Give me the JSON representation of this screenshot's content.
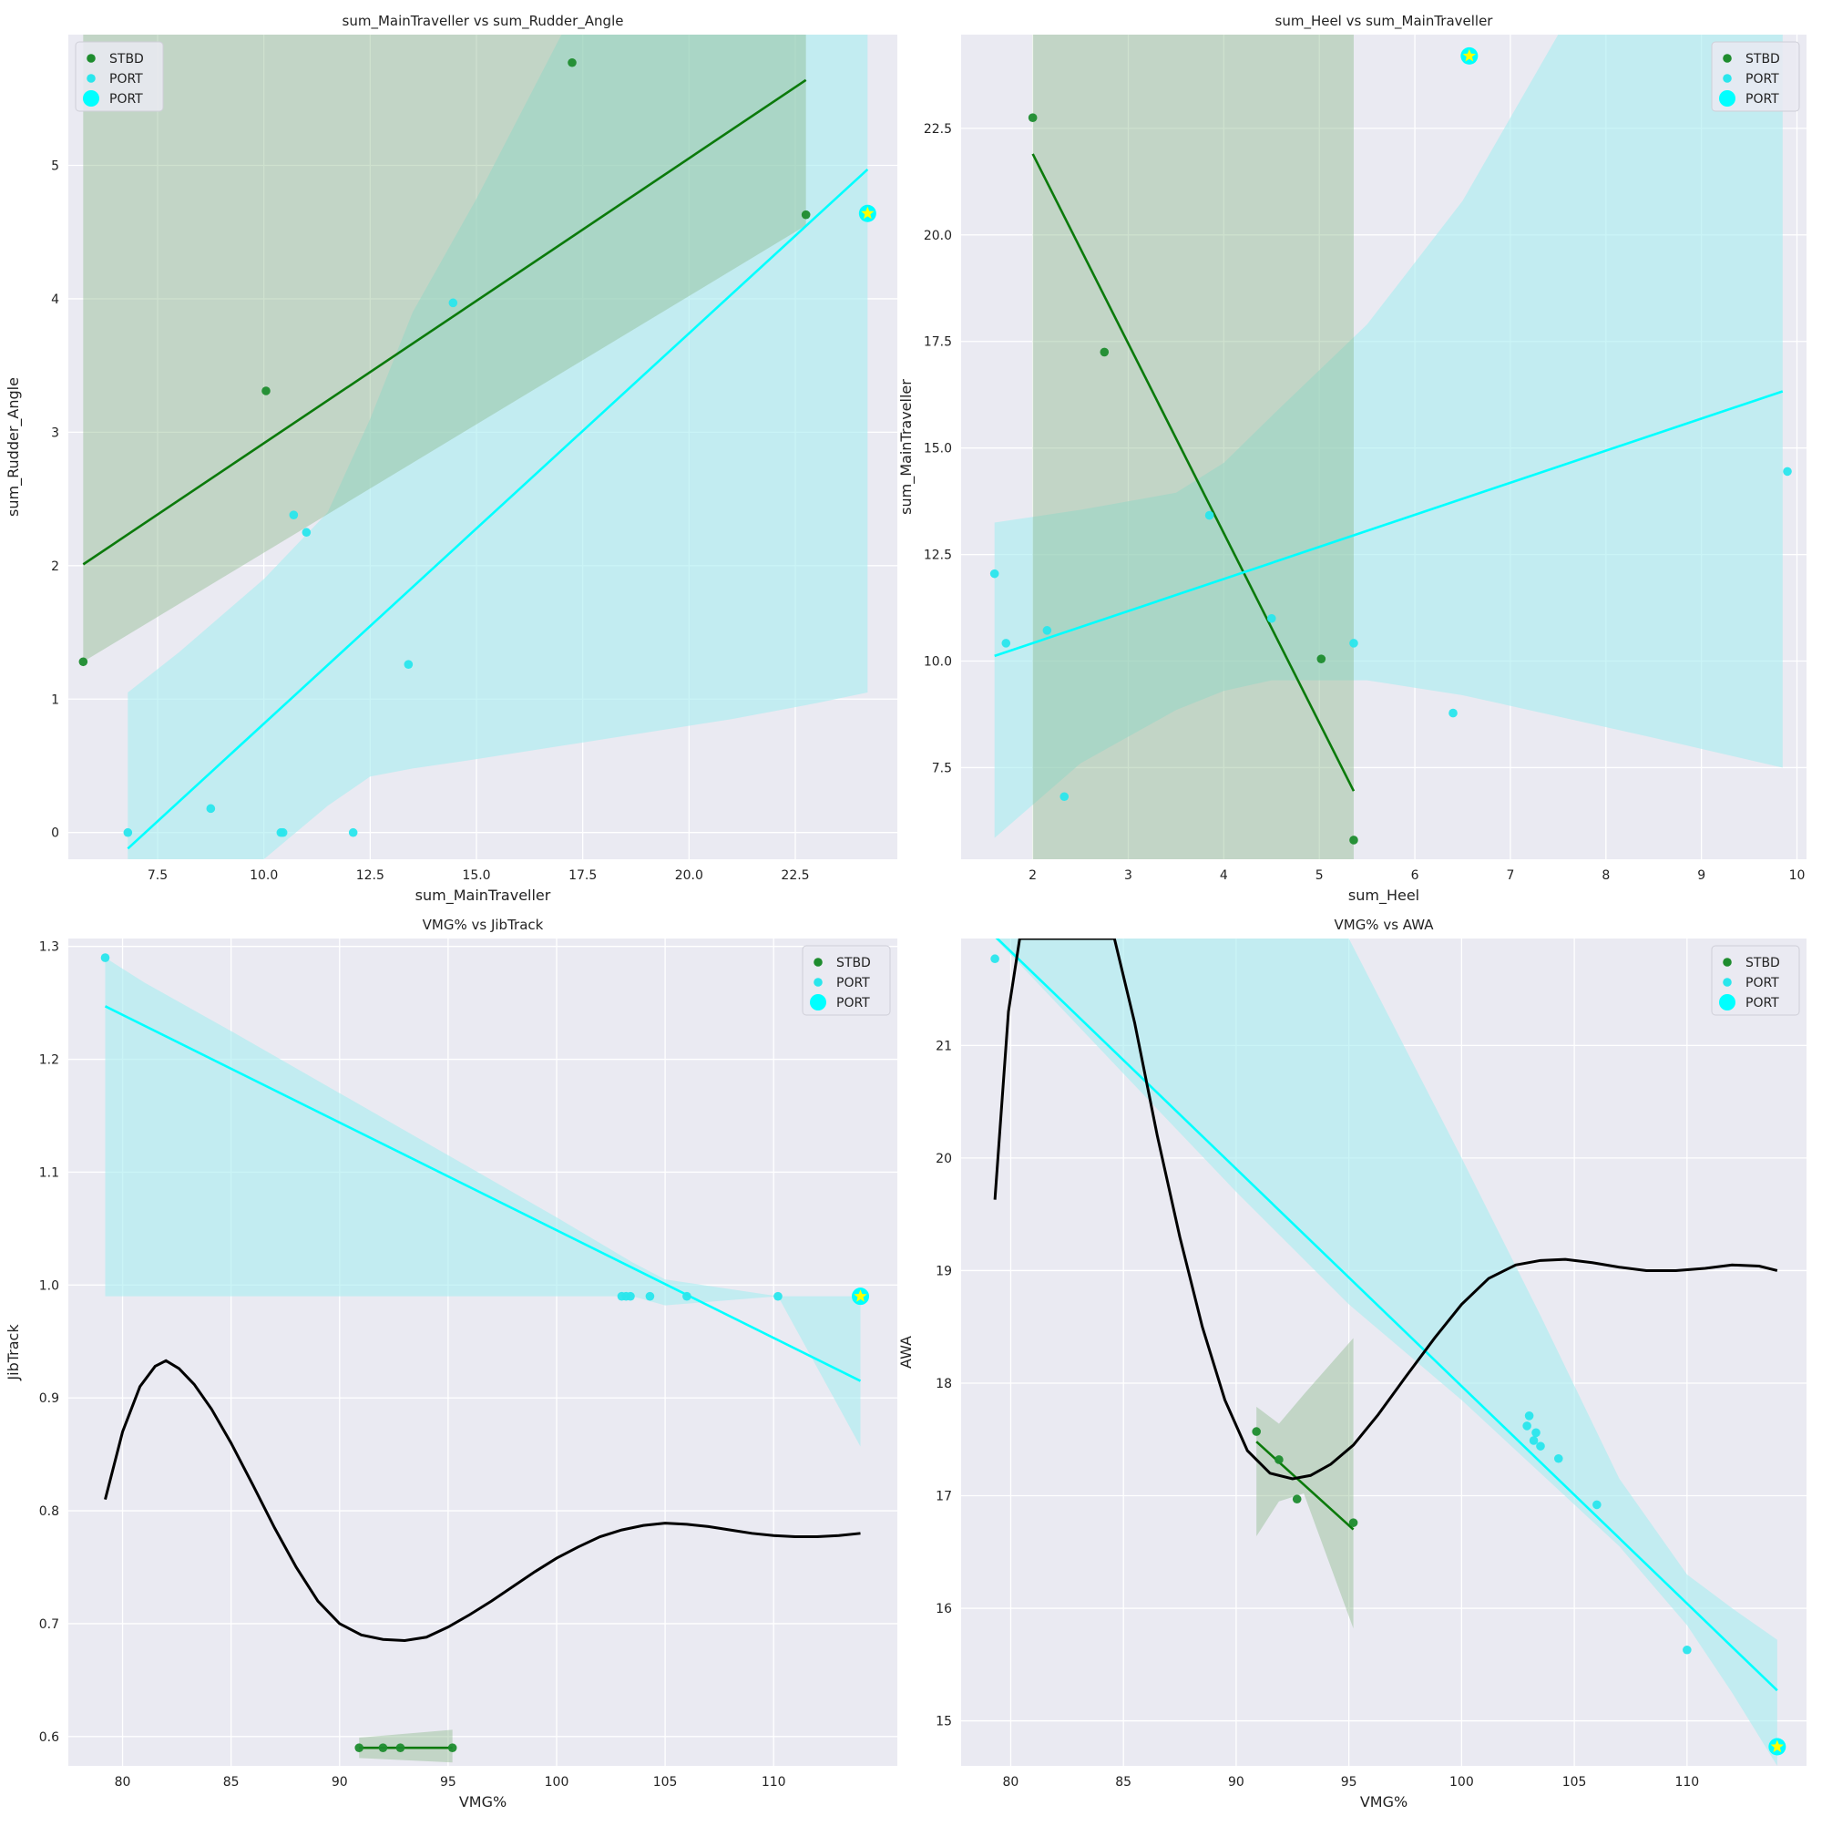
{
  "colors": {
    "background": "#eaeaf2",
    "grid": "#ffffff",
    "stbd": "#1e8c2e",
    "stbd_line": "#0b7a0b",
    "port": "#00ffff",
    "port_dot": "#29e6ec",
    "port_band": "#a6ecf0",
    "stbd_band": "#8ab88a",
    "highlight": "#ffff00",
    "trend": "#000000"
  },
  "chart_data": [
    {
      "type": "scatter",
      "title": "sum_MainTraveller vs sum_Rudder_Angle",
      "xlabel": "sum_MainTraveller",
      "ylabel": "sum_Rudder_Angle",
      "xlim": [
        5.4,
        24.9
      ],
      "ylim": [
        -0.2,
        5.98
      ],
      "xticks": [
        "7.5",
        "10.0",
        "12.5",
        "15.0",
        "17.5",
        "20.0",
        "22.5"
      ],
      "xtick_values": [
        7.5,
        10,
        12.5,
        15,
        17.5,
        20,
        22.5
      ],
      "yticks": [
        "0",
        "1",
        "2",
        "3",
        "4",
        "5"
      ],
      "ytick_values": [
        0,
        1,
        2,
        3,
        4,
        5
      ],
      "grid": true,
      "legend": {
        "placement": "top-left",
        "entries": [
          "STBD",
          "PORT",
          "PORT"
        ]
      },
      "series": [
        {
          "name": "STBD",
          "color_key": "stbd",
          "x": [
            5.75,
            10.05,
            17.25,
            22.75
          ],
          "y": [
            1.28,
            3.31,
            5.77,
            4.63
          ],
          "fit": {
            "x": [
              5.75,
              22.75
            ],
            "y": [
              2.01,
              5.64
            ]
          },
          "ci": {
            "x": [
              5.75,
              22.75
            ],
            "lower": [
              1.28,
              4.55
            ],
            "upper": [
              5.98,
              5.98
            ]
          }
        },
        {
          "name": "PORT",
          "color_key": "port",
          "x": [
            6.8,
            8.75,
            10.4,
            10.45,
            10.7,
            11.0,
            12.1,
            13.4,
            14.45,
            24.2
          ],
          "y": [
            0.0,
            0.18,
            0.0,
            0.0,
            2.38,
            2.25,
            0.0,
            1.26,
            3.97,
            4.64
          ],
          "fit": {
            "x": [
              6.8,
              24.2
            ],
            "y": [
              -0.12,
              4.97
            ]
          },
          "ci": {
            "x": [
              6.8,
              8.0,
              10.0,
              11.5,
              12.5,
              13.5,
              15.0,
              17.0,
              19.0,
              21.0,
              23.0,
              24.2
            ],
            "lower": [
              -0.2,
              -0.2,
              -0.2,
              0.2,
              0.42,
              0.48,
              0.55,
              0.65,
              0.75,
              0.85,
              0.97,
              1.05
            ],
            "upper": [
              1.05,
              1.35,
              1.9,
              2.4,
              3.1,
              3.9,
              4.75,
              5.98,
              5.98,
              5.98,
              5.98,
              5.98
            ]
          }
        }
      ],
      "highlight": {
        "series": "PORT",
        "x": 24.2,
        "y": 4.64
      }
    },
    {
      "type": "scatter",
      "title": "sum_Heel vs sum_MainTraveller",
      "xlabel": "sum_Heel",
      "ylabel": "sum_MainTraveller",
      "xlim": [
        1.25,
        10.1
      ],
      "ylim": [
        5.35,
        24.7
      ],
      "xticks": [
        "2",
        "3",
        "4",
        "5",
        "6",
        "7",
        "8",
        "9",
        "10"
      ],
      "xtick_values": [
        2,
        3,
        4,
        5,
        6,
        7,
        8,
        9,
        10
      ],
      "yticks": [
        "7.5",
        "10.0",
        "12.5",
        "15.0",
        "17.5",
        "20.0",
        "22.5"
      ],
      "ytick_values": [
        7.5,
        10,
        12.5,
        15,
        17.5,
        20,
        22.5
      ],
      "grid": true,
      "legend": {
        "placement": "top-right",
        "entries": [
          "STBD",
          "PORT",
          "PORT"
        ]
      },
      "series": [
        {
          "name": "STBD",
          "color_key": "stbd",
          "x": [
            2.0,
            2.75,
            5.02,
            5.36
          ],
          "y": [
            22.75,
            17.25,
            10.05,
            5.8
          ],
          "fit": {
            "x": [
              2.0,
              5.36
            ],
            "y": [
              21.9,
              6.95
            ]
          },
          "ci": {
            "x": [
              2.0,
              5.36
            ],
            "lower": [
              5.35,
              5.35
            ],
            "upper": [
              24.7,
              24.7
            ]
          }
        },
        {
          "name": "PORT",
          "color_key": "port",
          "x": [
            1.6,
            1.72,
            2.15,
            2.33,
            3.85,
            4.5,
            5.36,
            6.4,
            6.57,
            9.9
          ],
          "y": [
            12.05,
            10.42,
            10.72,
            6.82,
            13.42,
            11.0,
            10.42,
            8.78,
            24.2,
            14.45
          ],
          "fit": {
            "x": [
              1.6,
              9.85
            ],
            "y": [
              10.12,
              16.33
            ]
          },
          "ci": {
            "x": [
              1.6,
              2.5,
              3.5,
              4.0,
              4.5,
              5.5,
              6.5,
              7.5,
              8.5,
              9.85
            ],
            "lower": [
              5.85,
              7.6,
              8.85,
              9.3,
              9.55,
              9.55,
              9.2,
              8.7,
              8.2,
              7.5
            ],
            "upper": [
              13.25,
              13.55,
              13.95,
              14.65,
              15.75,
              17.9,
              20.8,
              24.7,
              24.7,
              24.7
            ]
          }
        }
      ],
      "highlight": {
        "series": "PORT",
        "x": 6.57,
        "y": 24.2
      }
    },
    {
      "type": "scatter",
      "title": "VMG% vs JibTrack",
      "xlabel": "VMG%",
      "ylabel": "JibTrack",
      "xlim": [
        77.5,
        115.7
      ],
      "ylim": [
        0.574,
        1.307
      ],
      "xticks": [
        "80",
        "85",
        "90",
        "95",
        "100",
        "105",
        "110"
      ],
      "xtick_values": [
        80,
        85,
        90,
        95,
        100,
        105,
        110
      ],
      "yticks": [
        "0.6",
        "0.7",
        "0.8",
        "0.9",
        "1.0",
        "1.1",
        "1.2",
        "1.3"
      ],
      "ytick_values": [
        0.6,
        0.7,
        0.8,
        0.9,
        1.0,
        1.1,
        1.2,
        1.3
      ],
      "grid": true,
      "legend": {
        "placement": "top-right",
        "entries": [
          "STBD",
          "PORT",
          "PORT"
        ]
      },
      "series": [
        {
          "name": "STBD",
          "color_key": "stbd",
          "x": [
            90.9,
            92.0,
            92.8,
            95.2
          ],
          "y": [
            0.59,
            0.59,
            0.59,
            0.59
          ],
          "fit": {
            "x": [
              90.9,
              95.2
            ],
            "y": [
              0.59,
              0.59
            ]
          },
          "ci": {
            "x": [
              90.9,
              95.2
            ],
            "lower": [
              0.581,
              0.577
            ],
            "upper": [
              0.599,
              0.606
            ]
          }
        },
        {
          "name": "PORT",
          "color_key": "port",
          "x": [
            79.2,
            103.0,
            103.2,
            103.4,
            104.3,
            106.0,
            110.2,
            114.0
          ],
          "y": [
            1.29,
            0.99,
            0.99,
            0.99,
            0.99,
            0.99,
            0.99,
            0.99
          ],
          "fit": {
            "x": [
              79.2,
              114.0
            ],
            "y": [
              1.247,
              0.915
            ]
          },
          "ci": {
            "x": [
              79.2,
              81.0,
              85.0,
              90.0,
              95.0,
              100.0,
              103.5,
              105.0,
              110.2,
              114.0
            ],
            "lower": [
              0.99,
              0.99,
              0.99,
              0.99,
              0.99,
              0.99,
              0.99,
              0.982,
              0.99,
              0.857
            ],
            "upper": [
              1.29,
              1.268,
              1.225,
              1.17,
              1.115,
              1.06,
              1.02,
              1.005,
              0.99,
              0.99
            ]
          }
        }
      ],
      "trend": {
        "x": [
          79.2,
          80.0,
          80.8,
          81.5,
          82.0,
          82.6,
          83.3,
          84.1,
          85.0,
          86.0,
          87.0,
          88.0,
          89.0,
          90.0,
          91.0,
          92.0,
          93.0,
          94.0,
          95.0,
          96.0,
          97.0,
          98.0,
          99.0,
          100.0,
          101.0,
          102.0,
          103.0,
          104.0,
          105.0,
          106.0,
          107.0,
          108.0,
          109.0,
          110.0,
          111.0,
          112.0,
          113.0,
          114.0
        ],
        "y": [
          0.81,
          0.87,
          0.91,
          0.928,
          0.933,
          0.926,
          0.912,
          0.89,
          0.86,
          0.823,
          0.785,
          0.75,
          0.72,
          0.7,
          0.69,
          0.686,
          0.685,
          0.688,
          0.697,
          0.708,
          0.72,
          0.733,
          0.746,
          0.758,
          0.768,
          0.777,
          0.783,
          0.787,
          0.789,
          0.788,
          0.786,
          0.783,
          0.78,
          0.778,
          0.777,
          0.777,
          0.778,
          0.78
        ]
      },
      "highlight": {
        "series": "PORT",
        "x": 114.0,
        "y": 0.99
      }
    },
    {
      "type": "scatter",
      "title": "VMG% vs AWA",
      "xlabel": "VMG%",
      "ylabel": "AWA",
      "xlim": [
        77.8,
        115.3
      ],
      "ylim": [
        14.6,
        21.95
      ],
      "xticks": [
        "80",
        "85",
        "90",
        "95",
        "100",
        "105",
        "110"
      ],
      "xtick_values": [
        80,
        85,
        90,
        95,
        100,
        105,
        110
      ],
      "yticks": [
        "15",
        "16",
        "17",
        "18",
        "19",
        "20",
        "21"
      ],
      "ytick_values": [
        15,
        16,
        17,
        18,
        19,
        20,
        21
      ],
      "grid": true,
      "legend": {
        "placement": "top-right",
        "entries": [
          "STBD",
          "PORT",
          "PORT"
        ]
      },
      "series": [
        {
          "name": "STBD",
          "color_key": "stbd",
          "x": [
            90.9,
            91.9,
            92.7,
            95.2
          ],
          "y": [
            17.57,
            17.32,
            16.97,
            16.76
          ],
          "fit": {
            "x": [
              90.9,
              95.2
            ],
            "y": [
              17.48,
              16.7
            ]
          },
          "ci": {
            "x": [
              90.9,
              91.9,
              93.0,
              95.2
            ],
            "lower": [
              16.64,
              16.95,
              17.02,
              15.82
            ],
            "upper": [
              17.79,
              17.64,
              17.9,
              18.4
            ]
          }
        },
        {
          "name": "PORT",
          "color_key": "port",
          "x": [
            79.3,
            102.9,
            103.0,
            103.2,
            103.3,
            103.5,
            104.3,
            106.0,
            110.0,
            114.0
          ],
          "y": [
            21.77,
            17.62,
            17.71,
            17.49,
            17.56,
            17.44,
            17.33,
            16.92,
            15.63,
            14.77
          ],
          "fit": {
            "x": [
              79.3,
              114.0
            ],
            "y": [
              21.97,
              15.27
            ]
          },
          "ci": {
            "x": [
              79.3,
              80.5,
              85.0,
              90.0,
              95.0,
              100.0,
              103.5,
              107.0,
              110.0,
              112.0,
              114.0
            ],
            "lower": [
              21.95,
              21.7,
              20.75,
              19.7,
              18.7,
              17.85,
              17.2,
              16.55,
              15.85,
              15.25,
              14.6
            ],
            "upper": [
              21.95,
              21.95,
              21.95,
              21.95,
              21.95,
              20.0,
              18.6,
              17.15,
              16.3,
              16.0,
              15.72
            ]
          }
        }
      ],
      "trend": {
        "x": [
          79.3,
          79.9,
          80.4,
          81.0,
          81.6,
          82.3,
          83.0,
          83.8,
          84.6,
          85.5,
          86.5,
          87.5,
          88.5,
          89.5,
          90.5,
          91.5,
          92.5,
          93.3,
          94.2,
          95.2,
          96.3,
          97.5,
          98.8,
          100.0,
          101.2,
          102.4,
          103.5,
          104.6,
          105.8,
          107.0,
          108.2,
          109.5,
          110.8,
          112.0,
          113.2,
          114.0
        ],
        "y": [
          19.63,
          21.3,
          21.95,
          21.95,
          21.95,
          21.95,
          21.95,
          21.95,
          21.95,
          21.2,
          20.2,
          19.3,
          18.5,
          17.85,
          17.4,
          17.2,
          17.15,
          17.18,
          17.28,
          17.45,
          17.72,
          18.05,
          18.4,
          18.7,
          18.93,
          19.05,
          19.09,
          19.1,
          19.07,
          19.03,
          19.0,
          19.0,
          19.02,
          19.05,
          19.04,
          19.0
        ]
      },
      "highlight": {
        "series": "PORT",
        "x": 114.0,
        "y": 14.77
      }
    }
  ]
}
